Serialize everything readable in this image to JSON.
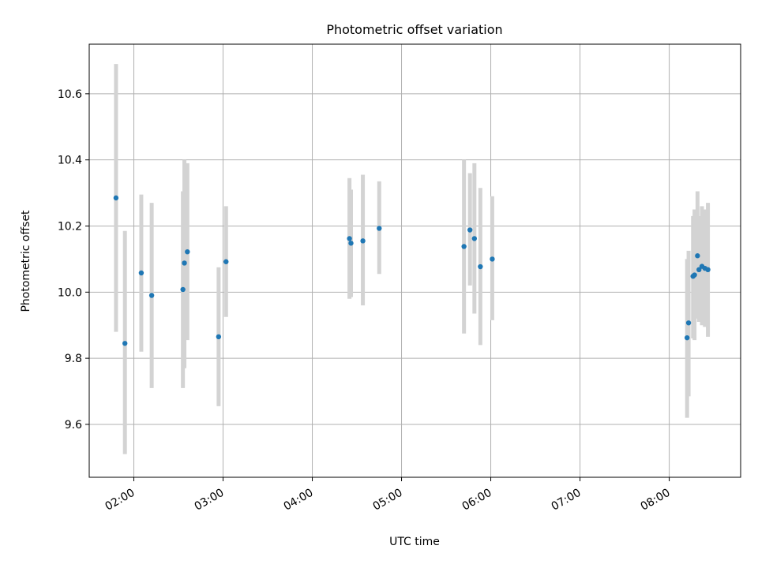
{
  "chart_data": {
    "type": "scatter",
    "title": "Photometric offset variation",
    "xlabel": "UTC time",
    "ylabel": "Photometric offset",
    "xlim": [
      "01:30",
      "08:48"
    ],
    "ylim": [
      9.44,
      10.75
    ],
    "x_ticks": [
      "02:00",
      "03:00",
      "04:00",
      "05:00",
      "06:00",
      "07:00",
      "08:00"
    ],
    "y_ticks": [
      9.6,
      9.8,
      10.0,
      10.2,
      10.4,
      10.6
    ],
    "grid": true,
    "point_color": "#1f77b4",
    "errorbar_color": "#d3d3d3",
    "points": [
      {
        "t": "01:48",
        "y": 10.285,
        "lo": 9.88,
        "hi": 10.69
      },
      {
        "t": "01:54",
        "y": 9.845,
        "lo": 9.51,
        "hi": 10.185
      },
      {
        "t": "02:05",
        "y": 10.058,
        "lo": 9.82,
        "hi": 10.295
      },
      {
        "t": "02:12",
        "y": 9.99,
        "lo": 9.71,
        "hi": 10.27
      },
      {
        "t": "02:33",
        "y": 10.008,
        "lo": 9.71,
        "hi": 10.305
      },
      {
        "t": "02:34",
        "y": 10.088,
        "lo": 9.77,
        "hi": 10.4
      },
      {
        "t": "02:36",
        "y": 10.122,
        "lo": 9.855,
        "hi": 10.39
      },
      {
        "t": "02:57",
        "y": 9.865,
        "lo": 9.655,
        "hi": 10.075
      },
      {
        "t": "03:02",
        "y": 10.092,
        "lo": 9.925,
        "hi": 10.26
      },
      {
        "t": "04:25",
        "y": 10.162,
        "lo": 9.98,
        "hi": 10.345
      },
      {
        "t": "04:26",
        "y": 10.148,
        "lo": 9.985,
        "hi": 10.31
      },
      {
        "t": "04:34",
        "y": 10.155,
        "lo": 9.96,
        "hi": 10.355
      },
      {
        "t": "04:45",
        "y": 10.193,
        "lo": 10.055,
        "hi": 10.335
      },
      {
        "t": "05:42",
        "y": 10.138,
        "lo": 9.875,
        "hi": 10.4
      },
      {
        "t": "05:46",
        "y": 10.188,
        "lo": 10.02,
        "hi": 10.36
      },
      {
        "t": "05:49",
        "y": 10.162,
        "lo": 9.935,
        "hi": 10.39
      },
      {
        "t": "05:53",
        "y": 10.077,
        "lo": 9.84,
        "hi": 10.315
      },
      {
        "t": "06:01",
        "y": 10.1,
        "lo": 9.915,
        "hi": 10.29
      },
      {
        "t": "08:12",
        "y": 9.862,
        "lo": 9.62,
        "hi": 10.1
      },
      {
        "t": "08:13",
        "y": 9.907,
        "lo": 9.685,
        "hi": 10.125
      },
      {
        "t": "08:16",
        "y": 10.048,
        "lo": 9.86,
        "hi": 10.23
      },
      {
        "t": "08:17",
        "y": 10.052,
        "lo": 9.855,
        "hi": 10.25
      },
      {
        "t": "08:19",
        "y": 10.11,
        "lo": 9.92,
        "hi": 10.305
      },
      {
        "t": "08:20",
        "y": 10.068,
        "lo": 9.91,
        "hi": 10.23
      },
      {
        "t": "08:22",
        "y": 10.078,
        "lo": 9.9,
        "hi": 10.26
      },
      {
        "t": "08:24",
        "y": 10.072,
        "lo": 9.895,
        "hi": 10.25
      },
      {
        "t": "08:26",
        "y": 10.068,
        "lo": 9.865,
        "hi": 10.27
      }
    ]
  }
}
